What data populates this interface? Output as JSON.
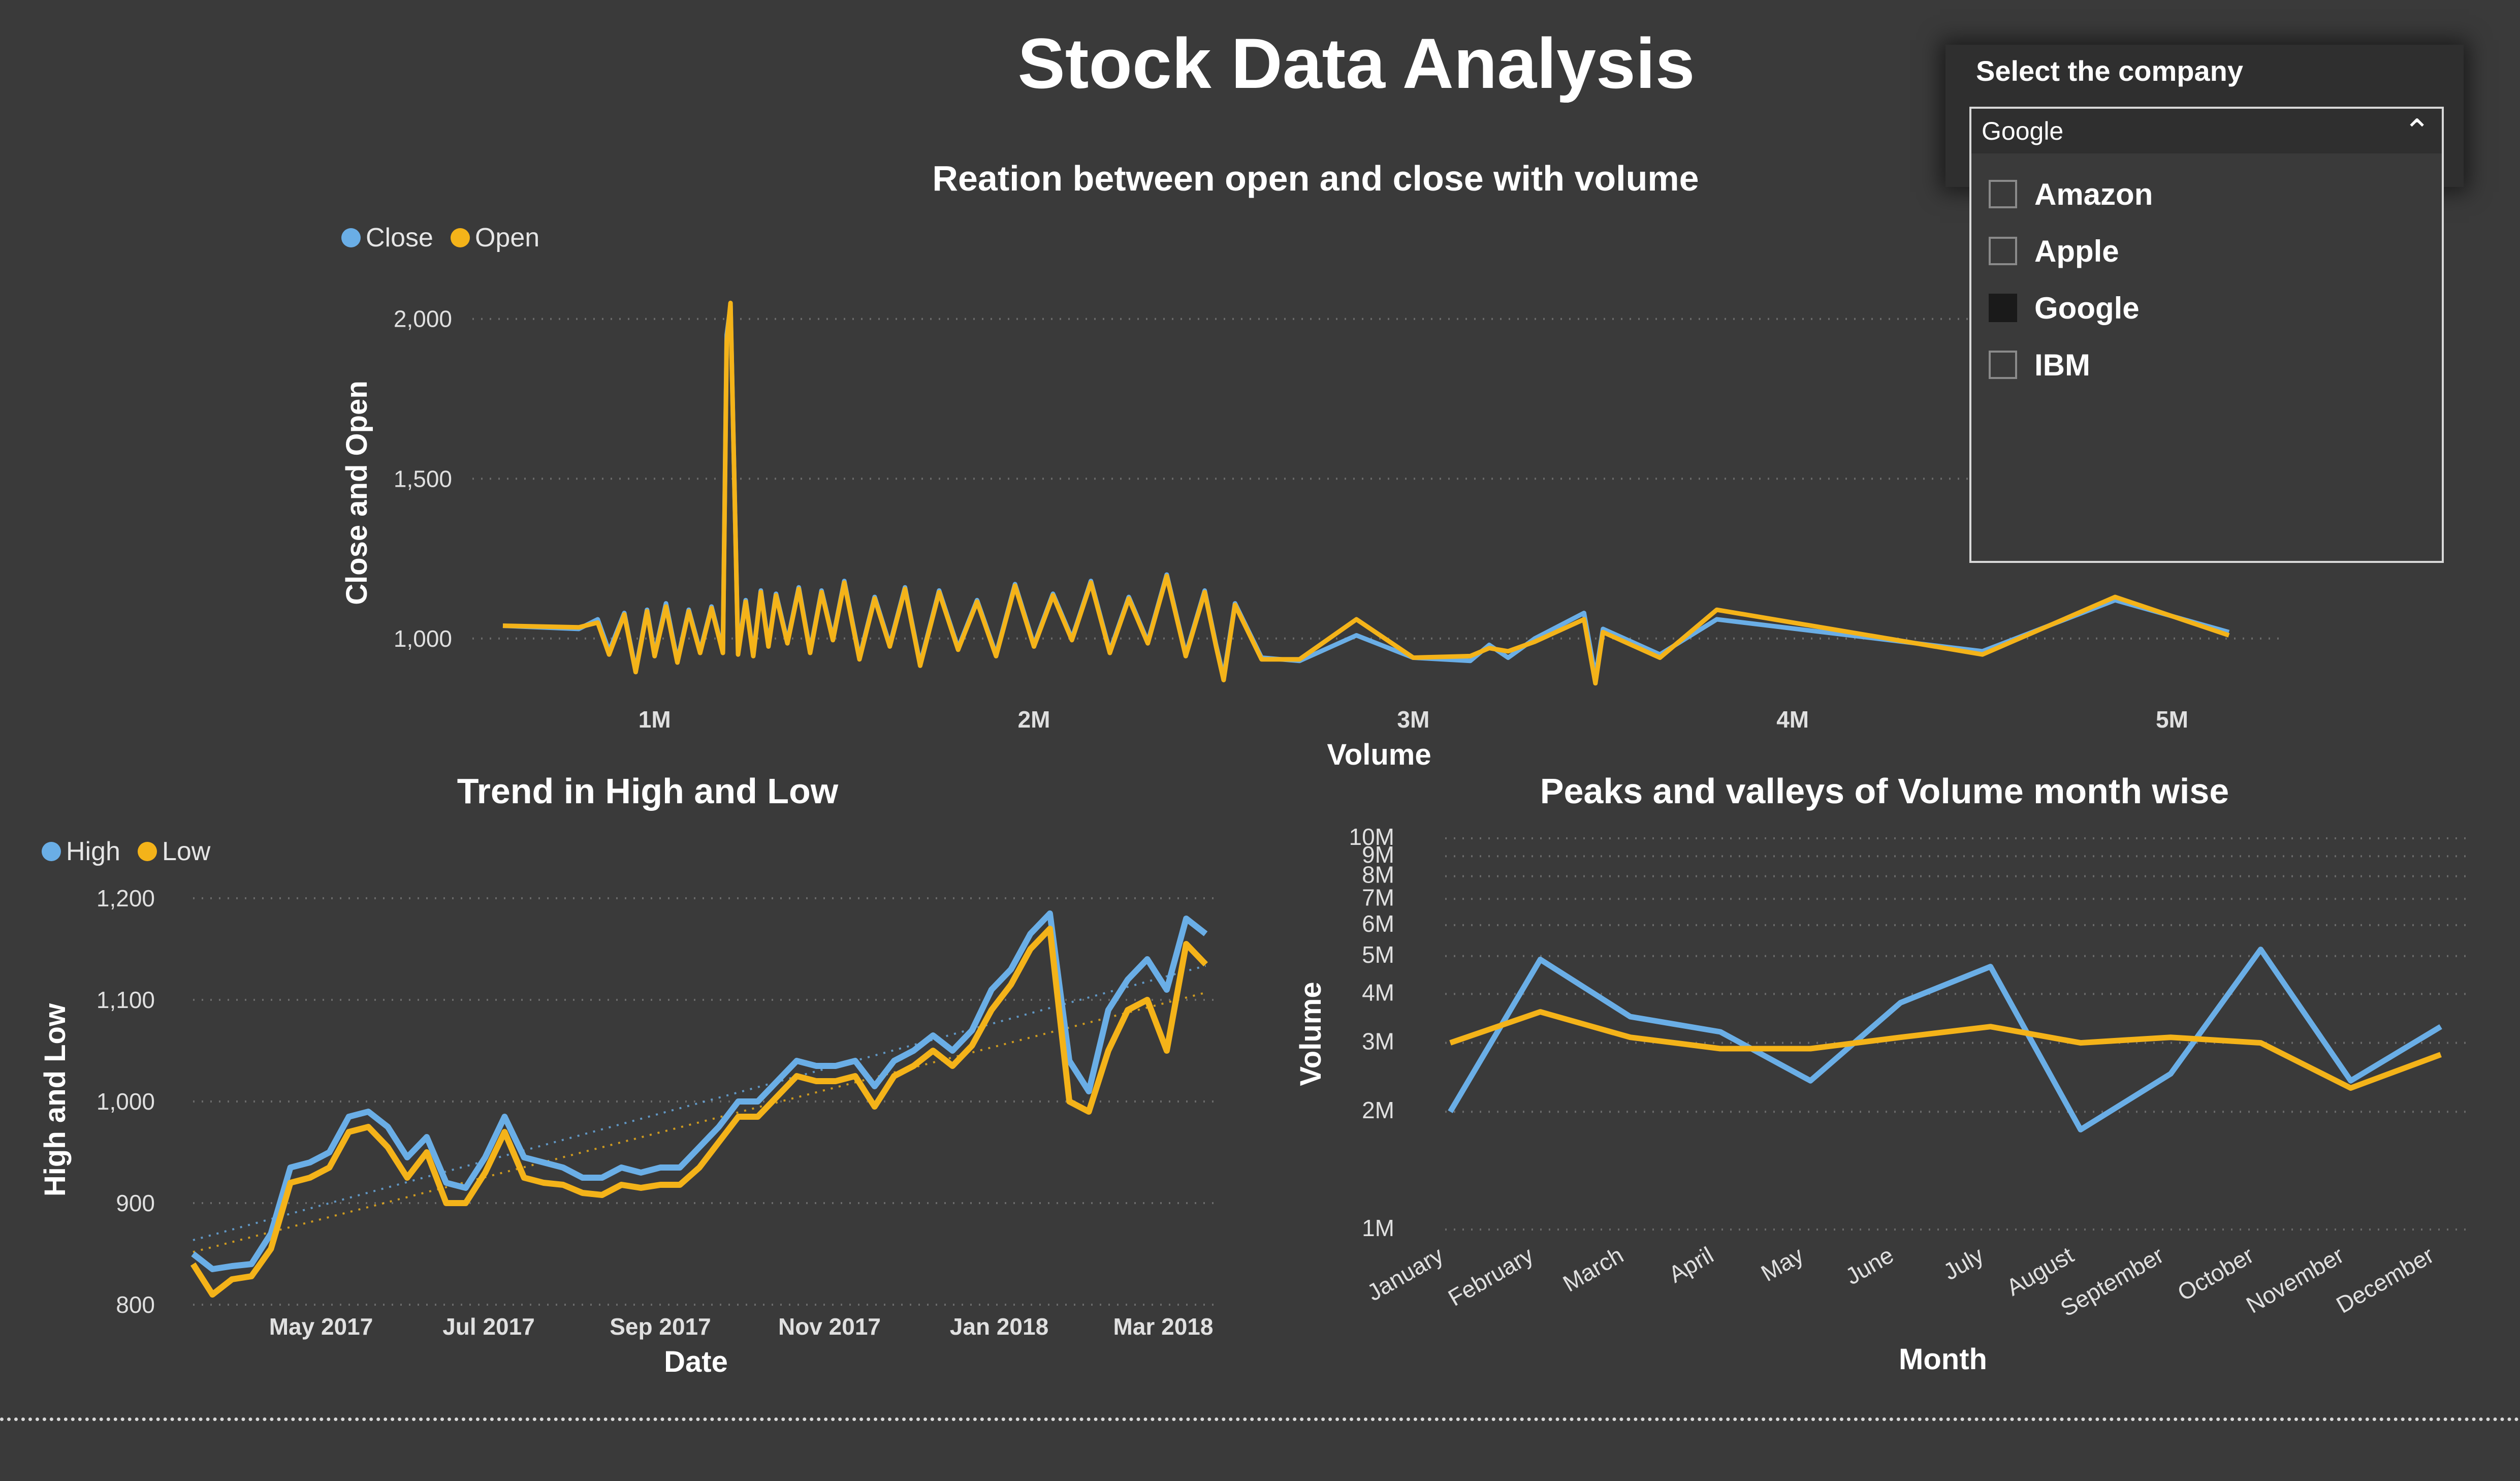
{
  "page": {
    "title": "Stock Data Analysis"
  },
  "slicer": {
    "header": "Select the company",
    "selected": "Google",
    "options": [
      {
        "label": "Amazon",
        "checked": false
      },
      {
        "label": "Apple",
        "checked": false
      },
      {
        "label": "Google",
        "checked": true
      },
      {
        "label": "IBM",
        "checked": false
      }
    ],
    "icon": "chevron-up-icon"
  },
  "colors": {
    "series_blue": "#6aaee6",
    "series_orange": "#f4b319",
    "background": "#3a3a3a"
  },
  "chart_data": [
    {
      "id": "open-close",
      "type": "line",
      "title": "Reation between open and close with volume",
      "xlabel": "Volume",
      "ylabel": "Close and Open",
      "legend": [
        "Close",
        "Open"
      ],
      "legend_position": "top-left",
      "x_ticks": [
        "1M",
        "2M",
        "3M",
        "4M",
        "5M"
      ],
      "y_ticks": [
        "1,000",
        "1,500",
        "2,000"
      ],
      "xlim": [
        600000,
        5300000
      ],
      "ylim": [
        820,
        2060
      ],
      "grid": true,
      "series": [
        {
          "name": "Close",
          "x": [
            600000,
            800000,
            850000,
            880000,
            920000,
            950000,
            980000,
            1000000,
            1030000,
            1060000,
            1090000,
            1120000,
            1150000,
            1180000,
            1190000,
            1200000,
            1220000,
            1240000,
            1260000,
            1280000,
            1300000,
            1320000,
            1350000,
            1380000,
            1410000,
            1440000,
            1470000,
            1500000,
            1540000,
            1580000,
            1620000,
            1660000,
            1700000,
            1750000,
            1800000,
            1850000,
            1900000,
            1950000,
            2000000,
            2050000,
            2100000,
            2150000,
            2200000,
            2250000,
            2300000,
            2350000,
            2400000,
            2450000,
            2480000,
            2500000,
            2530000,
            2600000,
            2700000,
            2850000,
            3000000,
            3150000,
            3200000,
            3250000,
            3320000,
            3450000,
            3480000,
            3500000,
            3650000,
            3800000,
            4500000,
            4850000,
            5150000
          ],
          "y": [
            1040,
            1030,
            1060,
            960,
            1080,
            900,
            1090,
            950,
            1110,
            930,
            1090,
            960,
            1100,
            960,
            1950,
            2040,
            960,
            1120,
            950,
            1150,
            980,
            1140,
            990,
            1160,
            960,
            1150,
            1000,
            1180,
            940,
            1130,
            980,
            1160,
            920,
            1150,
            970,
            1120,
            950,
            1170,
            980,
            1140,
            1000,
            1180,
            960,
            1130,
            990,
            1200,
            950,
            1150,
            980,
            880,
            1110,
            940,
            930,
            1010,
            940,
            930,
            980,
            940,
            1000,
            1080,
            880,
            1030,
            950,
            1060,
            960,
            1120,
            1020
          ]
        },
        {
          "name": "Open",
          "x": [
            600000,
            800000,
            850000,
            880000,
            920000,
            950000,
            980000,
            1000000,
            1030000,
            1060000,
            1090000,
            1120000,
            1150000,
            1180000,
            1190000,
            1200000,
            1220000,
            1240000,
            1260000,
            1280000,
            1300000,
            1320000,
            1350000,
            1380000,
            1410000,
            1440000,
            1470000,
            1500000,
            1540000,
            1580000,
            1620000,
            1660000,
            1700000,
            1750000,
            1800000,
            1850000,
            1900000,
            1950000,
            2000000,
            2050000,
            2100000,
            2150000,
            2200000,
            2250000,
            2300000,
            2350000,
            2400000,
            2450000,
            2480000,
            2500000,
            2530000,
            2600000,
            2700000,
            2850000,
            3000000,
            3150000,
            3200000,
            3250000,
            3320000,
            3450000,
            3480000,
            3500000,
            3650000,
            3800000,
            4500000,
            4850000,
            5150000
          ],
          "y": [
            1040,
            1035,
            1050,
            950,
            1075,
            895,
            1085,
            945,
            1100,
            925,
            1085,
            955,
            1095,
            955,
            1930,
            2050,
            950,
            1115,
            945,
            1145,
            975,
            1135,
            985,
            1155,
            955,
            1145,
            995,
            1175,
            935,
            1125,
            975,
            1155,
            915,
            1145,
            965,
            1115,
            945,
            1165,
            975,
            1135,
            995,
            1175,
            955,
            1125,
            985,
            1195,
            945,
            1145,
            975,
            870,
            1105,
            935,
            935,
            1060,
            940,
            945,
            970,
            960,
            990,
            1060,
            860,
            1020,
            940,
            1090,
            950,
            1130,
            1010
          ]
        }
      ]
    },
    {
      "id": "high-low",
      "type": "line",
      "title": "Trend in High and Low",
      "xlabel": "Date",
      "ylabel": "High and Low",
      "legend": [
        "High",
        "Low"
      ],
      "legend_position": "top-left",
      "x_ticks": [
        "May 2017",
        "Jul 2017",
        "Sep 2017",
        "Nov 2017",
        "Jan 2018",
        "Mar 2018"
      ],
      "y_ticks": [
        "800",
        "900",
        "1,000",
        "1,100",
        "1,200"
      ],
      "xlim": [
        "2017-03-27",
        "2018-03-29"
      ],
      "ylim": [
        800,
        1200
      ],
      "grid": true,
      "trend_lines": true,
      "series": [
        {
          "name": "High",
          "x": [
            "2017-03-27",
            "2017-04-03",
            "2017-04-10",
            "2017-04-17",
            "2017-04-24",
            "2017-05-01",
            "2017-05-08",
            "2017-05-15",
            "2017-05-22",
            "2017-05-29",
            "2017-06-05",
            "2017-06-12",
            "2017-06-19",
            "2017-06-26",
            "2017-07-03",
            "2017-07-10",
            "2017-07-17",
            "2017-07-24",
            "2017-07-31",
            "2017-08-07",
            "2017-08-14",
            "2017-08-21",
            "2017-08-28",
            "2017-09-04",
            "2017-09-11",
            "2017-09-18",
            "2017-09-25",
            "2017-10-02",
            "2017-10-09",
            "2017-10-16",
            "2017-10-23",
            "2017-10-30",
            "2017-11-06",
            "2017-11-13",
            "2017-11-20",
            "2017-11-27",
            "2017-12-04",
            "2017-12-11",
            "2017-12-18",
            "2017-12-25",
            "2018-01-01",
            "2018-01-08",
            "2018-01-15",
            "2018-01-22",
            "2018-01-29",
            "2018-02-05",
            "2018-02-12",
            "2018-02-19",
            "2018-02-26",
            "2018-03-05",
            "2018-03-12",
            "2018-03-19",
            "2018-03-26"
          ],
          "y": [
            850,
            835,
            838,
            840,
            870,
            935,
            940,
            950,
            985,
            990,
            975,
            945,
            965,
            920,
            915,
            945,
            985,
            945,
            940,
            935,
            925,
            925,
            935,
            930,
            935,
            935,
            955,
            975,
            1000,
            1000,
            1020,
            1040,
            1035,
            1035,
            1040,
            1015,
            1040,
            1050,
            1065,
            1050,
            1070,
            1110,
            1130,
            1165,
            1185,
            1040,
            1010,
            1090,
            1120,
            1140,
            1110,
            1180,
            1165
          ]
        },
        {
          "name": "Low",
          "x": [
            "2017-03-27",
            "2017-04-03",
            "2017-04-10",
            "2017-04-17",
            "2017-04-24",
            "2017-05-01",
            "2017-05-08",
            "2017-05-15",
            "2017-05-22",
            "2017-05-29",
            "2017-06-05",
            "2017-06-12",
            "2017-06-19",
            "2017-06-26",
            "2017-07-03",
            "2017-07-10",
            "2017-07-17",
            "2017-07-24",
            "2017-07-31",
            "2017-08-07",
            "2017-08-14",
            "2017-08-21",
            "2017-08-28",
            "2017-09-04",
            "2017-09-11",
            "2017-09-18",
            "2017-09-25",
            "2017-10-02",
            "2017-10-09",
            "2017-10-16",
            "2017-10-23",
            "2017-10-30",
            "2017-11-06",
            "2017-11-13",
            "2017-11-20",
            "2017-11-27",
            "2017-12-04",
            "2017-12-11",
            "2017-12-18",
            "2017-12-25",
            "2018-01-01",
            "2018-01-08",
            "2018-01-15",
            "2018-01-22",
            "2018-01-29",
            "2018-02-05",
            "2018-02-12",
            "2018-02-19",
            "2018-02-26",
            "2018-03-05",
            "2018-03-12",
            "2018-03-19",
            "2018-03-26"
          ],
          "y": [
            840,
            810,
            825,
            828,
            855,
            920,
            925,
            935,
            970,
            975,
            955,
            925,
            950,
            900,
            900,
            930,
            970,
            925,
            920,
            918,
            910,
            908,
            918,
            915,
            918,
            918,
            935,
            960,
            985,
            985,
            1005,
            1025,
            1020,
            1020,
            1025,
            995,
            1025,
            1035,
            1050,
            1035,
            1055,
            1090,
            1115,
            1150,
            1170,
            1000,
            990,
            1050,
            1090,
            1100,
            1050,
            1155,
            1135
          ]
        }
      ]
    },
    {
      "id": "volume-month",
      "type": "line",
      "title": "Peaks and valleys of Volume month wise",
      "xlabel": "Month",
      "ylabel": "Volume",
      "y_scale": "log",
      "y_ticks": [
        "1M",
        "2M",
        "3M",
        "4M",
        "5M",
        "6M",
        "7M",
        "8M",
        "9M",
        "10M"
      ],
      "ylim": [
        1000000,
        10000000
      ],
      "grid": true,
      "categories": [
        "January",
        "February",
        "March",
        "April",
        "May",
        "June",
        "July",
        "August",
        "September",
        "October",
        "November",
        "December"
      ],
      "series": [
        {
          "values": [
            2000000,
            4900000,
            3500000,
            3200000,
            2400000,
            3800000,
            4700000,
            1800000,
            2500000,
            5200000,
            2400000,
            3300000
          ]
        },
        {
          "values": [
            3000000,
            3600000,
            3100000,
            2900000,
            2900000,
            3100000,
            3300000,
            3000000,
            3100000,
            3000000,
            2300000,
            2800000
          ]
        }
      ]
    }
  ]
}
